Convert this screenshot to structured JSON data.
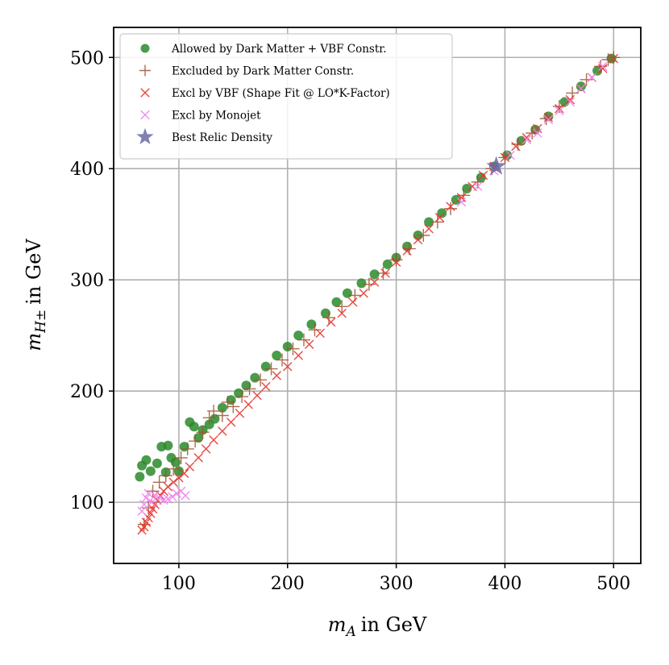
{
  "chart_data": {
    "type": "scatter",
    "title": "",
    "xlabel": "in GeV",
    "ylabel": "in GeV",
    "xlabel_symbol": "m",
    "xlabel_subscript": "A",
    "ylabel_symbol": "m",
    "ylabel_subscript": "H±",
    "xlim": [
      40,
      525
    ],
    "ylim": [
      45,
      527
    ],
    "xticks": [
      100,
      200,
      300,
      400,
      500
    ],
    "yticks": [
      100,
      200,
      300,
      400,
      500
    ],
    "grid": true,
    "legend_position": "top-left",
    "series": [
      {
        "name": "Allowed by Dark Matter + VBF Constr.",
        "marker": "circle",
        "color": "#2a8a2a",
        "points": [
          [
            64,
            123
          ],
          [
            66,
            133
          ],
          [
            70,
            138
          ],
          [
            74,
            128
          ],
          [
            80,
            135
          ],
          [
            84,
            150
          ],
          [
            88,
            127
          ],
          [
            90,
            151
          ],
          [
            93,
            140
          ],
          [
            97,
            136
          ],
          [
            100,
            128
          ],
          [
            105,
            150
          ],
          [
            110,
            172
          ],
          [
            114,
            168
          ],
          [
            118,
            158
          ],
          [
            122,
            165
          ],
          [
            128,
            170
          ],
          [
            133,
            175
          ],
          [
            140,
            185
          ],
          [
            148,
            192
          ],
          [
            155,
            198
          ],
          [
            162,
            205
          ],
          [
            170,
            212
          ],
          [
            180,
            222
          ],
          [
            190,
            232
          ],
          [
            200,
            240
          ],
          [
            210,
            250
          ],
          [
            222,
            260
          ],
          [
            235,
            270
          ],
          [
            245,
            280
          ],
          [
            255,
            288
          ],
          [
            268,
            297
          ],
          [
            280,
            305
          ],
          [
            292,
            314
          ],
          [
            300,
            320
          ],
          [
            310,
            330
          ],
          [
            320,
            340
          ],
          [
            330,
            352
          ],
          [
            342,
            360
          ],
          [
            355,
            372
          ],
          [
            365,
            382
          ],
          [
            378,
            392
          ],
          [
            390,
            402
          ],
          [
            402,
            412
          ],
          [
            415,
            425
          ],
          [
            428,
            435
          ],
          [
            440,
            447
          ],
          [
            455,
            460
          ],
          [
            470,
            474
          ],
          [
            485,
            488
          ],
          [
            498,
            499
          ]
        ]
      },
      {
        "name": "Excluded by Dark Matter Constr.",
        "marker": "plus",
        "color": "#a0522d",
        "points": [
          [
            68,
            80
          ],
          [
            72,
            95
          ],
          [
            76,
            110
          ],
          [
            82,
            118
          ],
          [
            88,
            124
          ],
          [
            95,
            130
          ],
          [
            102,
            140
          ],
          [
            108,
            148
          ],
          [
            115,
            155
          ],
          [
            122,
            163
          ],
          [
            128,
            176
          ],
          [
            132,
            182
          ],
          [
            140,
            178
          ],
          [
            145,
            190
          ],
          [
            150,
            186
          ],
          [
            158,
            195
          ],
          [
            165,
            202
          ],
          [
            175,
            210
          ],
          [
            185,
            220
          ],
          [
            195,
            228
          ],
          [
            205,
            238
          ],
          [
            215,
            246
          ],
          [
            225,
            255
          ],
          [
            238,
            266
          ],
          [
            250,
            276
          ],
          [
            262,
            286
          ],
          [
            275,
            296
          ],
          [
            288,
            306
          ],
          [
            300,
            318
          ],
          [
            312,
            328
          ],
          [
            325,
            340
          ],
          [
            338,
            352
          ],
          [
            350,
            364
          ],
          [
            362,
            376
          ],
          [
            375,
            388
          ],
          [
            388,
            400
          ],
          [
            400,
            410
          ],
          [
            412,
            422
          ],
          [
            425,
            432
          ],
          [
            438,
            445
          ],
          [
            450,
            456
          ],
          [
            462,
            468
          ],
          [
            475,
            480
          ],
          [
            488,
            492
          ],
          [
            495,
            498
          ],
          [
            500,
            500
          ]
        ]
      },
      {
        "name": "Excl by VBF (Shape Fit @ LO*K-Factor)",
        "marker": "x",
        "color": "#e8332e",
        "points": [
          [
            66,
            75
          ],
          [
            68,
            78
          ],
          [
            70,
            82
          ],
          [
            72,
            86
          ],
          [
            74,
            90
          ],
          [
            76,
            94
          ],
          [
            78,
            98
          ],
          [
            80,
            102
          ],
          [
            83,
            106
          ],
          [
            86,
            110
          ],
          [
            90,
            114
          ],
          [
            95,
            118
          ],
          [
            100,
            122
          ],
          [
            105,
            126
          ],
          [
            110,
            132
          ],
          [
            118,
            140
          ],
          [
            125,
            148
          ],
          [
            132,
            156
          ],
          [
            140,
            164
          ],
          [
            148,
            172
          ],
          [
            156,
            180
          ],
          [
            164,
            188
          ],
          [
            172,
            196
          ],
          [
            180,
            204
          ],
          [
            190,
            214
          ],
          [
            200,
            222
          ],
          [
            210,
            232
          ],
          [
            220,
            242
          ],
          [
            230,
            252
          ],
          [
            240,
            262
          ],
          [
            250,
            270
          ],
          [
            260,
            280
          ],
          [
            270,
            288
          ],
          [
            280,
            298
          ],
          [
            290,
            306
          ],
          [
            300,
            316
          ],
          [
            310,
            326
          ],
          [
            320,
            336
          ],
          [
            330,
            346
          ],
          [
            340,
            356
          ],
          [
            350,
            366
          ],
          [
            360,
            374
          ],
          [
            370,
            384
          ],
          [
            380,
            394
          ],
          [
            390,
            402
          ],
          [
            400,
            410
          ],
          [
            410,
            420
          ],
          [
            420,
            428
          ],
          [
            430,
            436
          ],
          [
            440,
            446
          ],
          [
            450,
            454
          ],
          [
            460,
            462
          ],
          [
            470,
            472
          ],
          [
            480,
            482
          ],
          [
            490,
            490
          ],
          [
            500,
            499
          ]
        ]
      },
      {
        "name": "Excl by Monojet",
        "marker": "x",
        "color": "#ee82ee",
        "points": [
          [
            66,
            92
          ],
          [
            68,
            98
          ],
          [
            70,
            104
          ],
          [
            72,
            108
          ],
          [
            75,
            100
          ],
          [
            78,
            106
          ],
          [
            82,
            104
          ],
          [
            86,
            102
          ],
          [
            90,
            103
          ],
          [
            94,
            105
          ],
          [
            98,
            108
          ],
          [
            102,
            110
          ],
          [
            106,
            106
          ],
          [
            360,
            370
          ],
          [
            375,
            384
          ],
          [
            390,
            398
          ],
          [
            405,
            412
          ],
          [
            420,
            426
          ],
          [
            430,
            432
          ],
          [
            440,
            444
          ],
          [
            450,
            452
          ],
          [
            460,
            460
          ],
          [
            470,
            472
          ],
          [
            480,
            482
          ],
          [
            490,
            492
          ]
        ]
      },
      {
        "name": "Best Relic Density",
        "marker": "star",
        "color": "#6a6aa8",
        "points": [
          [
            392,
            402
          ]
        ]
      }
    ]
  }
}
